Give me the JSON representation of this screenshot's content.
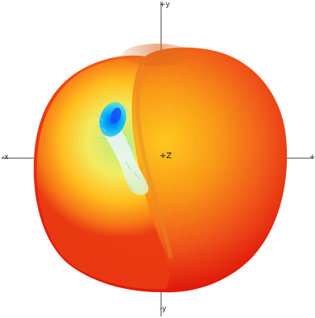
{
  "axes": {
    "y_pos_label": "+y",
    "y_neg_label": "-y",
    "x_neg_label": "-x",
    "x_pos_label": "+x",
    "z_pos_label": "+Z"
  },
  "colors": {
    "background": "#ffffff",
    "axis_line": "#444444",
    "surface_hot": "#e8140a",
    "surface_orange": "#f66a14",
    "surface_yellow": "#ffcf2a",
    "surface_green": "#9fe86a",
    "surface_cyan": "#00c4ff",
    "surface_blue": "#1a70ff"
  }
}
